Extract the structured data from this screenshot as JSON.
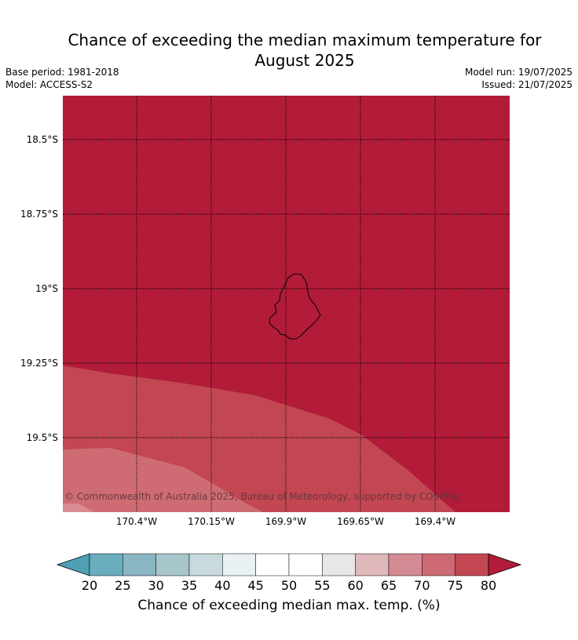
{
  "title": "Chance of exceeding the median maximum temperature for August 2025",
  "title_line1": "Chance of exceeding the median maximum temperature for",
  "title_line2": "August 2025",
  "meta": {
    "base_period": "Base period: 1981-2018",
    "model": "Model: ACCESS-S2",
    "model_run": "Model run: 19/07/2025",
    "issued": "Issued: 21/07/2025"
  },
  "map": {
    "latitude_labels": [
      "18.5°S",
      "18.75°S",
      "19°S",
      "19.25°S",
      "19.5°S"
    ],
    "longitude_labels": [
      "170.4°W",
      "170.15°W",
      "169.9°W",
      "169.65°W",
      "169.4°W"
    ],
    "copyright": "© Commonwealth of Australia 2025, Bureau of Meteorology, supported by COSPPac",
    "region_colors": {
      "above_80": "#b21c38",
      "75_80": "#c24753",
      "70_75": "#cf6b73",
      "65_70": "#d88b93"
    }
  },
  "colorbar": {
    "ticks": [
      "20",
      "25",
      "30",
      "35",
      "40",
      "45",
      "50",
      "55",
      "60",
      "65",
      "70",
      "75",
      "80"
    ],
    "colors": [
      "#69adbf",
      "#8ab6c3",
      "#a7c6cb",
      "#c8dadd",
      "#e9f1f3",
      "#ffffff",
      "#ffffff",
      "#e8e6e6",
      "#dfb8bb",
      "#d58b94",
      "#cd6a74",
      "#c24753"
    ],
    "under_color": "#4fa0b4",
    "over_color": "#b21c38",
    "label": "Chance of exceeding median max. temp. (%)"
  }
}
